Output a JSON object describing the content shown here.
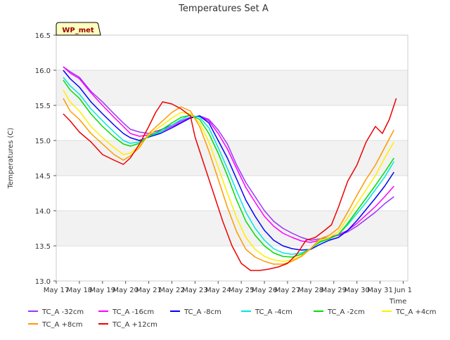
{
  "chart_data": {
    "type": "line",
    "title": "Temperatures Set A",
    "xlabel": "Time",
    "ylabel": "Temperatures (C)",
    "badge": "WP_met",
    "xlim": [
      0,
      15.2
    ],
    "ylim": [
      13.0,
      16.5
    ],
    "yticks": [
      13.0,
      13.5,
      14.0,
      14.5,
      15.0,
      15.5,
      16.0,
      16.5
    ],
    "ytick_labels": [
      "13.0",
      "13.5",
      "14.0",
      "14.5",
      "15.0",
      "15.5",
      "16.0",
      "16.5"
    ],
    "xticks": [
      0,
      1,
      2,
      3,
      4,
      5,
      6,
      7,
      8,
      9,
      10,
      11,
      12,
      13,
      14,
      15
    ],
    "xtick_labels": [
      "May 17",
      "May 18",
      "May 19",
      "May 20",
      "May 21",
      "May 22",
      "May 23",
      "May 24",
      "May 25",
      "May 26",
      "May 27",
      "May 28",
      "May 29",
      "May 30",
      "May 31",
      "Jun 1"
    ],
    "grid": "horizontal-bands",
    "legend_position": "bottom",
    "x_unit_note": "x values are days counted from May 17",
    "series": [
      {
        "name": "TC_A -32cm",
        "color": "#9933ff",
        "points": [
          [
            0.3,
            16.05
          ],
          [
            0.6,
            15.98
          ],
          [
            1.0,
            15.9
          ],
          [
            1.5,
            15.7
          ],
          [
            2.0,
            15.55
          ],
          [
            2.5,
            15.38
          ],
          [
            2.9,
            15.25
          ],
          [
            3.2,
            15.16
          ],
          [
            3.6,
            15.12
          ],
          [
            4.0,
            15.1
          ],
          [
            4.5,
            15.15
          ],
          [
            5.0,
            15.22
          ],
          [
            5.4,
            15.28
          ],
          [
            5.8,
            15.33
          ],
          [
            6.2,
            15.35
          ],
          [
            6.6,
            15.3
          ],
          [
            7.0,
            15.15
          ],
          [
            7.4,
            14.95
          ],
          [
            7.8,
            14.65
          ],
          [
            8.2,
            14.4
          ],
          [
            8.6,
            14.2
          ],
          [
            9.0,
            14.0
          ],
          [
            9.4,
            13.85
          ],
          [
            9.8,
            13.75
          ],
          [
            10.2,
            13.68
          ],
          [
            10.6,
            13.62
          ],
          [
            11.0,
            13.58
          ],
          [
            11.4,
            13.6
          ],
          [
            11.8,
            13.62
          ],
          [
            12.2,
            13.65
          ],
          [
            12.6,
            13.7
          ],
          [
            13.0,
            13.78
          ],
          [
            13.4,
            13.88
          ],
          [
            13.8,
            13.98
          ],
          [
            14.2,
            14.1
          ],
          [
            14.6,
            14.2
          ]
        ]
      },
      {
        "name": "TC_A -16cm",
        "color": "#ff00ff",
        "points": [
          [
            0.3,
            16.05
          ],
          [
            0.6,
            15.96
          ],
          [
            1.0,
            15.88
          ],
          [
            1.5,
            15.68
          ],
          [
            2.0,
            15.5
          ],
          [
            2.5,
            15.33
          ],
          [
            2.9,
            15.2
          ],
          [
            3.2,
            15.1
          ],
          [
            3.6,
            15.06
          ],
          [
            4.0,
            15.08
          ],
          [
            4.5,
            15.12
          ],
          [
            5.0,
            15.2
          ],
          [
            5.4,
            15.26
          ],
          [
            5.8,
            15.32
          ],
          [
            6.2,
            15.35
          ],
          [
            6.6,
            15.28
          ],
          [
            7.0,
            15.1
          ],
          [
            7.4,
            14.88
          ],
          [
            7.8,
            14.6
          ],
          [
            8.2,
            14.33
          ],
          [
            8.6,
            14.12
          ],
          [
            9.0,
            13.92
          ],
          [
            9.4,
            13.78
          ],
          [
            9.8,
            13.68
          ],
          [
            10.2,
            13.62
          ],
          [
            10.6,
            13.57
          ],
          [
            11.0,
            13.55
          ],
          [
            11.4,
            13.58
          ],
          [
            11.8,
            13.62
          ],
          [
            12.2,
            13.66
          ],
          [
            12.6,
            13.72
          ],
          [
            13.0,
            13.82
          ],
          [
            13.4,
            13.94
          ],
          [
            13.8,
            14.06
          ],
          [
            14.2,
            14.2
          ],
          [
            14.6,
            14.35
          ]
        ]
      },
      {
        "name": "TC_A -8cm",
        "color": "#0000ff",
        "points": [
          [
            0.3,
            16.0
          ],
          [
            0.6,
            15.88
          ],
          [
            1.0,
            15.76
          ],
          [
            1.5,
            15.55
          ],
          [
            2.0,
            15.38
          ],
          [
            2.5,
            15.22
          ],
          [
            2.9,
            15.1
          ],
          [
            3.2,
            15.04
          ],
          [
            3.6,
            15.0
          ],
          [
            4.0,
            15.05
          ],
          [
            4.5,
            15.1
          ],
          [
            5.0,
            15.18
          ],
          [
            5.4,
            15.25
          ],
          [
            5.8,
            15.32
          ],
          [
            6.2,
            15.35
          ],
          [
            6.6,
            15.25
          ],
          [
            7.0,
            15.0
          ],
          [
            7.4,
            14.75
          ],
          [
            7.8,
            14.45
          ],
          [
            8.2,
            14.15
          ],
          [
            8.6,
            13.92
          ],
          [
            9.0,
            13.72
          ],
          [
            9.4,
            13.58
          ],
          [
            9.8,
            13.5
          ],
          [
            10.2,
            13.46
          ],
          [
            10.6,
            13.44
          ],
          [
            11.0,
            13.45
          ],
          [
            11.4,
            13.52
          ],
          [
            11.8,
            13.58
          ],
          [
            12.2,
            13.62
          ],
          [
            12.6,
            13.72
          ],
          [
            13.0,
            13.86
          ],
          [
            13.4,
            14.02
          ],
          [
            13.8,
            14.18
          ],
          [
            14.2,
            14.35
          ],
          [
            14.6,
            14.55
          ]
        ]
      },
      {
        "name": "TC_A -4cm",
        "color": "#00e5e5",
        "points": [
          [
            0.3,
            15.9
          ],
          [
            0.6,
            15.78
          ],
          [
            1.0,
            15.66
          ],
          [
            1.5,
            15.45
          ],
          [
            2.0,
            15.28
          ],
          [
            2.5,
            15.12
          ],
          [
            2.9,
            15.0
          ],
          [
            3.2,
            14.96
          ],
          [
            3.6,
            14.98
          ],
          [
            4.0,
            15.06
          ],
          [
            4.5,
            15.12
          ],
          [
            5.0,
            15.22
          ],
          [
            5.4,
            15.3
          ],
          [
            5.8,
            15.36
          ],
          [
            6.2,
            15.33
          ],
          [
            6.6,
            15.18
          ],
          [
            7.0,
            14.9
          ],
          [
            7.4,
            14.6
          ],
          [
            7.8,
            14.28
          ],
          [
            8.2,
            13.98
          ],
          [
            8.6,
            13.75
          ],
          [
            9.0,
            13.58
          ],
          [
            9.4,
            13.46
          ],
          [
            9.8,
            13.4
          ],
          [
            10.2,
            13.38
          ],
          [
            10.6,
            13.4
          ],
          [
            11.0,
            13.46
          ],
          [
            11.4,
            13.55
          ],
          [
            11.8,
            13.6
          ],
          [
            12.2,
            13.66
          ],
          [
            12.6,
            13.8
          ],
          [
            13.0,
            13.96
          ],
          [
            13.4,
            14.12
          ],
          [
            13.8,
            14.3
          ],
          [
            14.2,
            14.48
          ],
          [
            14.6,
            14.7
          ]
        ]
      },
      {
        "name": "TC_A -2cm",
        "color": "#00dd00",
        "points": [
          [
            0.3,
            15.86
          ],
          [
            0.6,
            15.72
          ],
          [
            1.0,
            15.6
          ],
          [
            1.5,
            15.38
          ],
          [
            2.0,
            15.2
          ],
          [
            2.5,
            15.05
          ],
          [
            2.9,
            14.95
          ],
          [
            3.2,
            14.92
          ],
          [
            3.6,
            14.96
          ],
          [
            4.0,
            15.06
          ],
          [
            4.5,
            15.14
          ],
          [
            5.0,
            15.25
          ],
          [
            5.4,
            15.33
          ],
          [
            5.8,
            15.36
          ],
          [
            6.2,
            15.3
          ],
          [
            6.6,
            15.1
          ],
          [
            7.0,
            14.82
          ],
          [
            7.4,
            14.5
          ],
          [
            7.8,
            14.15
          ],
          [
            8.2,
            13.85
          ],
          [
            8.6,
            13.65
          ],
          [
            9.0,
            13.5
          ],
          [
            9.4,
            13.4
          ],
          [
            9.8,
            13.35
          ],
          [
            10.2,
            13.34
          ],
          [
            10.6,
            13.38
          ],
          [
            11.0,
            13.46
          ],
          [
            11.4,
            13.56
          ],
          [
            11.8,
            13.6
          ],
          [
            12.2,
            13.66
          ],
          [
            12.6,
            13.82
          ],
          [
            13.0,
            14.0
          ],
          [
            13.4,
            14.18
          ],
          [
            13.8,
            14.36
          ],
          [
            14.2,
            14.55
          ],
          [
            14.6,
            14.75
          ]
        ]
      },
      {
        "name": "TC_A +4cm",
        "color": "#ffee00",
        "points": [
          [
            0.3,
            15.72
          ],
          [
            0.6,
            15.55
          ],
          [
            1.0,
            15.42
          ],
          [
            1.5,
            15.2
          ],
          [
            2.0,
            15.04
          ],
          [
            2.5,
            14.9
          ],
          [
            2.9,
            14.8
          ],
          [
            3.2,
            14.82
          ],
          [
            3.6,
            14.92
          ],
          [
            4.0,
            15.08
          ],
          [
            4.5,
            15.2
          ],
          [
            5.0,
            15.32
          ],
          [
            5.4,
            15.4
          ],
          [
            5.8,
            15.38
          ],
          [
            6.2,
            15.25
          ],
          [
            6.6,
            14.98
          ],
          [
            7.0,
            14.62
          ],
          [
            7.4,
            14.25
          ],
          [
            7.8,
            13.9
          ],
          [
            8.2,
            13.62
          ],
          [
            8.6,
            13.45
          ],
          [
            9.0,
            13.35
          ],
          [
            9.4,
            13.3
          ],
          [
            9.8,
            13.28
          ],
          [
            10.2,
            13.3
          ],
          [
            10.6,
            13.36
          ],
          [
            11.0,
            13.46
          ],
          [
            11.4,
            13.58
          ],
          [
            11.8,
            13.62
          ],
          [
            12.2,
            13.7
          ],
          [
            12.6,
            13.9
          ],
          [
            13.0,
            14.1
          ],
          [
            13.4,
            14.3
          ],
          [
            13.8,
            14.5
          ],
          [
            14.2,
            14.75
          ],
          [
            14.6,
            14.98
          ]
        ]
      },
      {
        "name": "TC_A +8cm",
        "color": "#ff9900",
        "points": [
          [
            0.3,
            15.6
          ],
          [
            0.6,
            15.42
          ],
          [
            1.0,
            15.3
          ],
          [
            1.5,
            15.1
          ],
          [
            2.0,
            14.95
          ],
          [
            2.5,
            14.8
          ],
          [
            2.9,
            14.72
          ],
          [
            3.2,
            14.78
          ],
          [
            3.6,
            14.9
          ],
          [
            4.0,
            15.1
          ],
          [
            4.5,
            15.25
          ],
          [
            5.0,
            15.4
          ],
          [
            5.4,
            15.48
          ],
          [
            5.8,
            15.42
          ],
          [
            6.2,
            15.2
          ],
          [
            6.6,
            14.85
          ],
          [
            7.0,
            14.45
          ],
          [
            7.4,
            14.05
          ],
          [
            7.8,
            13.7
          ],
          [
            8.2,
            13.45
          ],
          [
            8.6,
            13.34
          ],
          [
            9.0,
            13.28
          ],
          [
            9.4,
            13.24
          ],
          [
            9.8,
            13.24
          ],
          [
            10.2,
            13.28
          ],
          [
            10.6,
            13.35
          ],
          [
            11.0,
            13.46
          ],
          [
            11.4,
            13.6
          ],
          [
            11.8,
            13.65
          ],
          [
            12.2,
            13.75
          ],
          [
            12.6,
            13.98
          ],
          [
            13.0,
            14.22
          ],
          [
            13.4,
            14.45
          ],
          [
            13.8,
            14.65
          ],
          [
            14.2,
            14.9
          ],
          [
            14.6,
            15.15
          ]
        ]
      },
      {
        "name": "TC_A +12cm",
        "color": "#ee0000",
        "points": [
          [
            0.3,
            15.38
          ],
          [
            0.6,
            15.28
          ],
          [
            1.0,
            15.12
          ],
          [
            1.5,
            14.98
          ],
          [
            2.0,
            14.8
          ],
          [
            2.5,
            14.72
          ],
          [
            2.9,
            14.66
          ],
          [
            3.2,
            14.75
          ],
          [
            3.6,
            14.95
          ],
          [
            4.0,
            15.2
          ],
          [
            4.3,
            15.4
          ],
          [
            4.6,
            15.55
          ],
          [
            5.0,
            15.52
          ],
          [
            5.4,
            15.45
          ],
          [
            5.8,
            15.35
          ],
          [
            6.0,
            15.05
          ],
          [
            6.4,
            14.65
          ],
          [
            6.8,
            14.25
          ],
          [
            7.2,
            13.85
          ],
          [
            7.6,
            13.5
          ],
          [
            8.0,
            13.25
          ],
          [
            8.4,
            13.15
          ],
          [
            8.8,
            13.15
          ],
          [
            9.2,
            13.17
          ],
          [
            9.6,
            13.2
          ],
          [
            10.0,
            13.25
          ],
          [
            10.4,
            13.38
          ],
          [
            10.8,
            13.58
          ],
          [
            11.2,
            13.62
          ],
          [
            11.6,
            13.72
          ],
          [
            11.9,
            13.8
          ],
          [
            12.2,
            14.05
          ],
          [
            12.6,
            14.42
          ],
          [
            13.0,
            14.65
          ],
          [
            13.4,
            14.98
          ],
          [
            13.8,
            15.2
          ],
          [
            14.1,
            15.1
          ],
          [
            14.4,
            15.3
          ],
          [
            14.7,
            15.6
          ]
        ]
      }
    ]
  }
}
